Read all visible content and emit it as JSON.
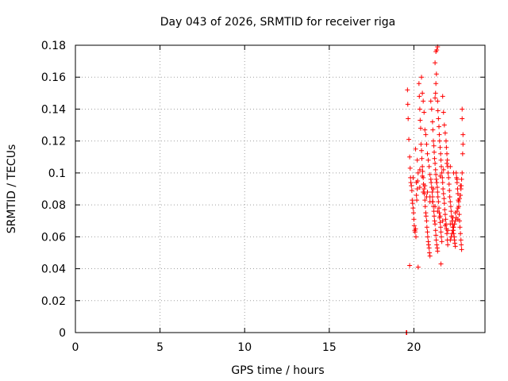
{
  "chart_data": {
    "type": "scatter",
    "title": "Day 043 of 2026, SRMTID for receiver riga",
    "xlabel": "GPS time / hours",
    "ylabel": "SRMTID / TECUs",
    "xlim": [
      0,
      24.2
    ],
    "ylim": [
      0,
      0.18
    ],
    "x_ticks": [
      "0",
      "5",
      "10",
      "15",
      "20"
    ],
    "y_ticks": [
      "0",
      "0.02",
      "0.04",
      "0.06",
      "0.08",
      "0.1",
      "0.12",
      "0.14",
      "0.16",
      "0.18"
    ],
    "grid": true,
    "marker": "plus",
    "series": [
      {
        "color": "#ff0000",
        "points": [
          [
            19.55,
            0.0
          ],
          [
            19.58,
            0.0
          ],
          [
            19.62,
            0.152
          ],
          [
            19.64,
            0.143
          ],
          [
            19.66,
            0.134
          ],
          [
            19.7,
            0.121
          ],
          [
            19.75,
            0.11
          ],
          [
            19.78,
            0.103
          ],
          [
            19.8,
            0.097
          ],
          [
            19.82,
            0.094
          ],
          [
            19.85,
            0.092
          ],
          [
            19.88,
            0.089
          ],
          [
            19.9,
            0.083
          ],
          [
            19.92,
            0.081
          ],
          [
            19.95,
            0.078
          ],
          [
            19.98,
            0.075
          ],
          [
            20.0,
            0.071
          ],
          [
            20.02,
            0.067
          ],
          [
            20.05,
            0.064
          ],
          [
            20.07,
            0.063
          ],
          [
            20.1,
            0.065
          ],
          [
            20.12,
            0.06
          ],
          [
            20.15,
            0.086
          ],
          [
            20.17,
            0.083
          ],
          [
            20.2,
            0.09
          ],
          [
            20.22,
            0.095
          ],
          [
            20.25,
            0.1
          ],
          [
            19.75,
            0.042
          ],
          [
            20.25,
            0.041
          ],
          [
            20.3,
            0.156
          ],
          [
            20.32,
            0.148
          ],
          [
            20.35,
            0.14
          ],
          [
            20.37,
            0.133
          ],
          [
            20.4,
            0.128
          ],
          [
            20.42,
            0.118
          ],
          [
            20.45,
            0.114
          ],
          [
            20.47,
            0.109
          ],
          [
            20.5,
            0.104
          ],
          [
            20.52,
            0.101
          ],
          [
            20.55,
            0.097
          ],
          [
            20.57,
            0.093
          ],
          [
            20.6,
            0.09
          ],
          [
            20.62,
            0.087
          ],
          [
            20.65,
            0.083
          ],
          [
            20.67,
            0.079
          ],
          [
            20.7,
            0.075
          ],
          [
            20.72,
            0.073
          ],
          [
            20.75,
            0.07
          ],
          [
            20.77,
            0.066
          ],
          [
            20.8,
            0.063
          ],
          [
            20.82,
            0.06
          ],
          [
            20.85,
            0.057
          ],
          [
            20.87,
            0.055
          ],
          [
            20.9,
            0.053
          ],
          [
            20.92,
            0.05
          ],
          [
            20.95,
            0.048
          ],
          [
            20.45,
            0.16
          ],
          [
            20.5,
            0.15
          ],
          [
            20.55,
            0.145
          ],
          [
            20.6,
            0.138
          ],
          [
            20.65,
            0.127
          ],
          [
            20.7,
            0.124
          ],
          [
            20.75,
            0.118
          ],
          [
            20.8,
            0.112
          ],
          [
            20.85,
            0.108
          ],
          [
            20.9,
            0.104
          ],
          [
            20.95,
            0.099
          ],
          [
            21.0,
            0.096
          ],
          [
            21.02,
            0.094
          ],
          [
            21.05,
            0.091
          ],
          [
            21.08,
            0.088
          ],
          [
            21.1,
            0.085
          ],
          [
            21.12,
            0.082
          ],
          [
            21.15,
            0.079
          ],
          [
            21.18,
            0.076
          ],
          [
            21.2,
            0.073
          ],
          [
            21.22,
            0.07
          ],
          [
            21.25,
            0.068
          ],
          [
            21.28,
            0.064
          ],
          [
            21.3,
            0.061
          ],
          [
            21.32,
            0.058
          ],
          [
            21.35,
            0.055
          ],
          [
            21.38,
            0.053
          ],
          [
            21.4,
            0.051
          ],
          [
            21.0,
            0.145
          ],
          [
            21.05,
            0.14
          ],
          [
            21.1,
            0.132
          ],
          [
            21.12,
            0.127
          ],
          [
            21.15,
            0.12
          ],
          [
            21.18,
            0.117
          ],
          [
            21.2,
            0.113
          ],
          [
            21.22,
            0.109
          ],
          [
            21.25,
            0.106
          ],
          [
            21.28,
            0.102
          ],
          [
            21.3,
            0.099
          ],
          [
            21.32,
            0.096
          ],
          [
            21.35,
            0.094
          ],
          [
            21.38,
            0.091
          ],
          [
            21.4,
            0.088
          ],
          [
            21.42,
            0.085
          ],
          [
            21.45,
            0.082
          ],
          [
            21.48,
            0.078
          ],
          [
            21.5,
            0.075
          ],
          [
            21.52,
            0.072
          ],
          [
            21.55,
            0.069
          ],
          [
            21.58,
            0.066
          ],
          [
            21.6,
            0.063
          ],
          [
            21.62,
            0.06
          ],
          [
            21.65,
            0.057
          ],
          [
            21.25,
            0.169
          ],
          [
            21.3,
            0.176
          ],
          [
            21.35,
            0.177
          ],
          [
            21.4,
            0.179
          ],
          [
            21.33,
            0.162
          ],
          [
            21.3,
            0.156
          ],
          [
            21.28,
            0.15
          ],
          [
            21.25,
            0.147
          ],
          [
            21.4,
            0.145
          ],
          [
            21.42,
            0.139
          ],
          [
            21.45,
            0.134
          ],
          [
            21.48,
            0.129
          ],
          [
            21.5,
            0.124
          ],
          [
            21.52,
            0.12
          ],
          [
            21.55,
            0.116
          ],
          [
            21.58,
            0.112
          ],
          [
            21.6,
            0.108
          ],
          [
            21.62,
            0.104
          ],
          [
            21.65,
            0.1
          ],
          [
            21.68,
            0.097
          ],
          [
            21.7,
            0.094
          ],
          [
            21.72,
            0.09
          ],
          [
            21.75,
            0.087
          ],
          [
            21.78,
            0.084
          ],
          [
            21.8,
            0.081
          ],
          [
            21.82,
            0.077
          ],
          [
            21.85,
            0.074
          ],
          [
            21.88,
            0.071
          ],
          [
            21.9,
            0.068
          ],
          [
            21.92,
            0.065
          ],
          [
            21.95,
            0.062
          ],
          [
            21.98,
            0.058
          ],
          [
            22.0,
            0.055
          ],
          [
            21.6,
            0.043
          ],
          [
            21.7,
            0.148
          ],
          [
            21.75,
            0.138
          ],
          [
            21.8,
            0.13
          ],
          [
            21.85,
            0.125
          ],
          [
            21.9,
            0.12
          ],
          [
            21.92,
            0.116
          ],
          [
            21.95,
            0.112
          ],
          [
            21.98,
            0.108
          ],
          [
            22.0,
            0.104
          ],
          [
            22.02,
            0.1
          ],
          [
            22.05,
            0.097
          ],
          [
            22.08,
            0.093
          ],
          [
            22.1,
            0.089
          ],
          [
            22.12,
            0.085
          ],
          [
            22.15,
            0.082
          ],
          [
            22.18,
            0.079
          ],
          [
            22.2,
            0.076
          ],
          [
            22.22,
            0.073
          ],
          [
            22.25,
            0.07
          ],
          [
            22.28,
            0.068
          ],
          [
            22.3,
            0.066
          ],
          [
            22.32,
            0.064
          ],
          [
            22.35,
            0.062
          ],
          [
            22.38,
            0.06
          ],
          [
            22.4,
            0.058
          ],
          [
            22.42,
            0.056
          ],
          [
            22.45,
            0.054
          ],
          [
            22.5,
            0.1
          ],
          [
            22.52,
            0.097
          ],
          [
            22.55,
            0.094
          ],
          [
            22.58,
            0.09
          ],
          [
            22.6,
            0.087
          ],
          [
            22.62,
            0.083
          ],
          [
            22.65,
            0.079
          ],
          [
            22.68,
            0.074
          ],
          [
            22.7,
            0.07
          ],
          [
            22.72,
            0.066
          ],
          [
            22.75,
            0.062
          ],
          [
            22.78,
            0.058
          ],
          [
            22.8,
            0.055
          ],
          [
            22.82,
            0.052
          ],
          [
            22.85,
            0.14
          ],
          [
            22.85,
            0.134
          ],
          [
            22.9,
            0.124
          ],
          [
            22.9,
            0.118
          ],
          [
            22.88,
            0.112
          ],
          [
            22.85,
            0.1
          ],
          [
            22.82,
            0.096
          ],
          [
            22.8,
            0.092
          ],
          [
            22.78,
            0.09
          ],
          [
            22.75,
            0.086
          ],
          [
            22.7,
            0.084
          ],
          [
            22.65,
            0.082
          ],
          [
            22.6,
            0.078
          ],
          [
            22.55,
            0.076
          ],
          [
            22.5,
            0.072
          ],
          [
            22.45,
            0.07
          ],
          [
            22.4,
            0.068
          ],
          [
            22.35,
            0.066
          ],
          [
            22.3,
            0.064
          ],
          [
            22.25,
            0.062
          ],
          [
            22.2,
            0.06
          ],
          [
            22.15,
            0.058
          ],
          [
            20.1,
            0.115
          ],
          [
            20.2,
            0.108
          ],
          [
            20.35,
            0.102
          ],
          [
            20.5,
            0.098
          ],
          [
            20.65,
            0.092
          ],
          [
            20.8,
            0.088
          ],
          [
            20.95,
            0.085
          ],
          [
            21.1,
            0.082
          ],
          [
            21.25,
            0.079
          ],
          [
            21.4,
            0.076
          ],
          [
            21.55,
            0.073
          ],
          [
            21.7,
            0.07
          ],
          [
            21.85,
            0.067
          ],
          [
            22.0,
            0.064
          ],
          [
            22.15,
            0.068
          ],
          [
            22.3,
            0.072
          ],
          [
            22.45,
            0.075
          ],
          [
            22.6,
            0.071
          ],
          [
            19.95,
            0.097
          ],
          [
            20.15,
            0.094
          ],
          [
            20.35,
            0.091
          ],
          [
            20.55,
            0.088
          ],
          [
            20.75,
            0.085
          ],
          [
            20.95,
            0.082
          ],
          [
            21.15,
            0.09
          ],
          [
            21.35,
            0.094
          ],
          [
            21.55,
            0.098
          ],
          [
            21.75,
            0.102
          ],
          [
            21.95,
            0.106
          ],
          [
            22.15,
            0.104
          ],
          [
            22.35,
            0.1
          ],
          [
            22.55,
            0.096
          ],
          [
            22.75,
            0.092
          ]
        ]
      }
    ]
  }
}
